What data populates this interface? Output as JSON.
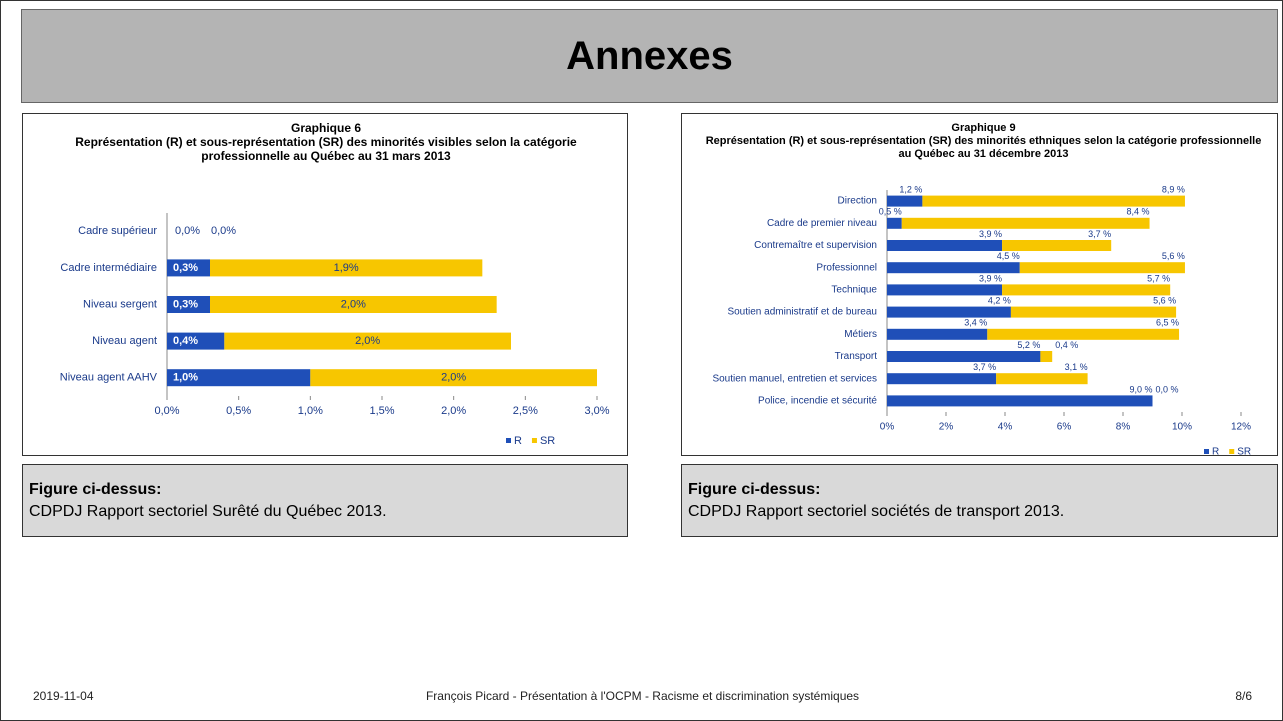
{
  "header": {
    "title": "Annexes"
  },
  "chart_data": [
    {
      "type": "bar",
      "orientation": "horizontal",
      "stacked": true,
      "title": "Graphique 6",
      "subtitle": "Représentation (R) et sous-représentation (SR) des minorités visibles selon la catégorie professionnelle au Québec au 31 mars 2013",
      "categories": [
        "Cadre supérieur",
        "Cadre intermédiaire",
        "Niveau sergent",
        "Niveau agent",
        "Niveau agent AAHV"
      ],
      "series": [
        {
          "name": "R",
          "color": "#1f4fb8",
          "values": [
            0.0,
            0.3,
            0.3,
            0.4,
            1.0
          ],
          "value_labels": [
            "0,0%",
            "0,3%",
            "0,3%",
            "0,4%",
            "1,0%"
          ]
        },
        {
          "name": "SR",
          "color": "#f7c600",
          "values": [
            0.0,
            1.9,
            2.0,
            2.0,
            2.0
          ],
          "value_labels": [
            "0,0%",
            "1,9%",
            "2,0%",
            "2,0%",
            "2,0%"
          ]
        }
      ],
      "xlim": [
        0,
        3
      ],
      "xticks": [
        {
          "value": 0,
          "label": "0,0%"
        },
        {
          "value": 0.5,
          "label": "0,5%"
        },
        {
          "value": 1,
          "label": "1,0%"
        },
        {
          "value": 1.5,
          "label": "1,5%"
        },
        {
          "value": 2,
          "label": "2,0%"
        },
        {
          "value": 2.5,
          "label": "2,5%"
        },
        {
          "value": 3,
          "label": "3,0%"
        }
      ],
      "legend": "bottom-right"
    },
    {
      "type": "bar",
      "orientation": "horizontal",
      "stacked": true,
      "title": "Graphique 9",
      "subtitle": "Représentation (R) et sous-représentation (SR) des minorités ethniques selon la catégorie professionnelle au Québec au 31 décembre 2013",
      "categories": [
        "Direction",
        "Cadre de premier niveau",
        "Contremaître et supervision",
        "Professionnel",
        "Technique",
        "Soutien administratif et de bureau",
        "Métiers",
        "Transport",
        "Soutien manuel, entretien et services",
        "Police, incendie et sécurité"
      ],
      "series": [
        {
          "name": "R",
          "color": "#1f4fb8",
          "values": [
            1.2,
            0.5,
            3.9,
            4.5,
            3.9,
            4.2,
            3.4,
            5.2,
            3.7,
            9.0
          ],
          "value_labels": [
            "1,2 %",
            "0,5 %",
            "3,9 %",
            "4,5 %",
            "3,9 %",
            "4,2 %",
            "3,4 %",
            "5,2 %",
            "3,7 %",
            "9,0 %"
          ]
        },
        {
          "name": "SR",
          "color": "#f7c600",
          "values": [
            8.9,
            8.4,
            3.7,
            5.6,
            5.7,
            5.6,
            6.5,
            0.4,
            3.1,
            0.0
          ],
          "value_labels": [
            "8,9 %",
            "8,4 %",
            "3,7 %",
            "5,6 %",
            "5,7 %",
            "5,6 %",
            "6,5 %",
            "0,4 %",
            "3,1 %",
            "0,0 %"
          ]
        }
      ],
      "xlim": [
        0,
        12
      ],
      "xticks": [
        {
          "value": 0,
          "label": "0%"
        },
        {
          "value": 2,
          "label": "2%"
        },
        {
          "value": 4,
          "label": "4%"
        },
        {
          "value": 6,
          "label": "6%"
        },
        {
          "value": 8,
          "label": "8%"
        },
        {
          "value": 10,
          "label": "10%"
        },
        {
          "value": 12,
          "label": "12%"
        }
      ],
      "legend": "bottom-right"
    }
  ],
  "captions": [
    {
      "title": "Figure ci-dessus:",
      "text": "CDPDJ Rapport sectoriel Surêté du Québec 2013."
    },
    {
      "title": "Figure ci-dessus:",
      "text": "CDPDJ Rapport sectoriel sociétés de transport 2013."
    }
  ],
  "footer": {
    "date": "2019-11-04",
    "center": "François Picard - Présentation à l'OCPM - Racisme et discrimination systémiques",
    "page": "8/6"
  }
}
